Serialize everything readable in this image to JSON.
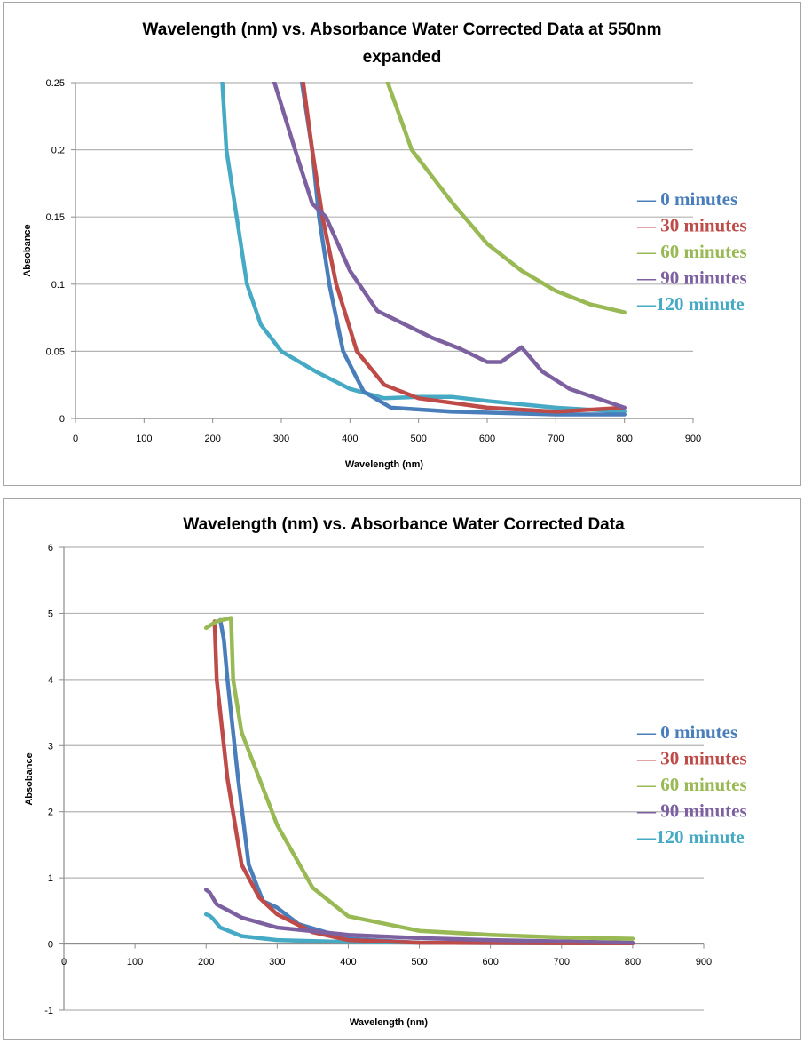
{
  "chart_data": [
    {
      "type": "line",
      "title": "Wavelength (nm) vs. Absorbance Water Corrected Data at 550nm expanded",
      "title_lines": [
        "Wavelength (nm) vs. Absorbance Water Corrected Data at 550nm",
        "expanded"
      ],
      "xlabel": "Wavelength (nm)",
      "ylabel": "Absobance",
      "xlim": [
        0,
        900
      ],
      "ylim": [
        0,
        0.25
      ],
      "xticks": [
        0,
        100,
        200,
        300,
        400,
        500,
        600,
        700,
        800,
        900
      ],
      "yticks": [
        0,
        0.05,
        0.1,
        0.15,
        0.2,
        0.25
      ],
      "ytick_labels": [
        "0",
        "0.05",
        "0.1",
        "0.15",
        "0.2",
        "0.25"
      ],
      "grid": true,
      "legend_position": "right",
      "series": [
        {
          "name": "0 minutes",
          "legend_label": "— 0 minutes",
          "color": "#4a7ebb",
          "x": [
            330,
            345,
            355,
            370,
            390,
            420,
            460,
            550,
            700,
            800
          ],
          "y": [
            0.25,
            0.2,
            0.15,
            0.1,
            0.05,
            0.02,
            0.008,
            0.005,
            0.003,
            0.003
          ]
        },
        {
          "name": "30 minutes",
          "legend_label": "— 30 minutes",
          "color": "#be4b48",
          "x": [
            332,
            345,
            360,
            380,
            410,
            450,
            500,
            600,
            700,
            800
          ],
          "y": [
            0.25,
            0.2,
            0.15,
            0.1,
            0.05,
            0.025,
            0.015,
            0.008,
            0.005,
            0.008
          ]
        },
        {
          "name": "60 minutes",
          "legend_label": "— 60 minutes",
          "color": "#98b954",
          "x": [
            455,
            490,
            550,
            600,
            650,
            700,
            750,
            800
          ],
          "y": [
            0.25,
            0.2,
            0.16,
            0.13,
            0.11,
            0.095,
            0.085,
            0.079
          ]
        },
        {
          "name": "90 minutes",
          "legend_label": "— 90 minutes",
          "color": "#7d60a0",
          "x": [
            290,
            320,
            345,
            365,
            400,
            440,
            480,
            520,
            560,
            600,
            620,
            650,
            680,
            720,
            760,
            800
          ],
          "y": [
            0.25,
            0.2,
            0.16,
            0.15,
            0.11,
            0.08,
            0.07,
            0.06,
            0.052,
            0.042,
            0.042,
            0.053,
            0.035,
            0.022,
            0.015,
            0.008
          ]
        },
        {
          "name": "120 minute",
          "legend_label": "—120 minute",
          "color": "#46aac5",
          "x": [
            214,
            220,
            235,
            250,
            270,
            300,
            350,
            400,
            450,
            500,
            550,
            600,
            700,
            800
          ],
          "y": [
            0.25,
            0.2,
            0.15,
            0.1,
            0.07,
            0.05,
            0.035,
            0.022,
            0.015,
            0.016,
            0.016,
            0.013,
            0.008,
            0.005
          ]
        }
      ]
    },
    {
      "type": "line",
      "title": "Wavelength (nm) vs. Absorbance Water Corrected Data",
      "title_lines": [
        "Wavelength (nm) vs. Absorbance Water Corrected Data"
      ],
      "xlabel": "Wavelength (nm)",
      "ylabel": "Absobance",
      "xlim": [
        0,
        900
      ],
      "ylim": [
        -1,
        6
      ],
      "xticks": [
        0,
        100,
        200,
        300,
        400,
        500,
        600,
        700,
        800,
        900
      ],
      "yticks": [
        -1,
        0,
        1,
        2,
        3,
        4,
        5,
        6
      ],
      "ytick_labels": [
        "-1",
        "0",
        "1",
        "2",
        "3",
        "4",
        "5",
        "6"
      ],
      "grid": true,
      "legend_position": "right",
      "series": [
        {
          "name": "0 minutes",
          "legend_label": "— 0 minutes",
          "color": "#4a7ebb",
          "x": [
            220,
            225,
            230,
            245,
            260,
            280,
            300,
            330,
            400,
            500,
            800
          ],
          "y": [
            4.9,
            4.6,
            4.0,
            2.5,
            1.2,
            0.65,
            0.55,
            0.3,
            0.08,
            0.02,
            0.01
          ]
        },
        {
          "name": "30 minutes",
          "legend_label": "— 30 minutes",
          "color": "#be4b48",
          "x": [
            212,
            215,
            230,
            250,
            275,
            300,
            350,
            400,
            500,
            800
          ],
          "y": [
            4.88,
            4.0,
            2.5,
            1.2,
            0.7,
            0.45,
            0.18,
            0.06,
            0.02,
            0.01
          ]
        },
        {
          "name": "60 minutes",
          "legend_label": "— 60 minutes",
          "color": "#98b954",
          "x": [
            200,
            215,
            235,
            238,
            250,
            275,
            300,
            350,
            400,
            500,
            600,
            700,
            800
          ],
          "y": [
            4.78,
            4.88,
            4.93,
            4.0,
            3.2,
            2.5,
            1.8,
            0.85,
            0.42,
            0.2,
            0.14,
            0.1,
            0.08
          ]
        },
        {
          "name": "90 minutes",
          "legend_label": "— 90 minutes",
          "color": "#7d60a0",
          "x": [
            200,
            205,
            215,
            250,
            300,
            400,
            500,
            600,
            700,
            800
          ],
          "y": [
            0.82,
            0.78,
            0.6,
            0.4,
            0.25,
            0.14,
            0.09,
            0.06,
            0.04,
            0.02
          ]
        },
        {
          "name": "120 minute",
          "legend_label": "—120 minute",
          "color": "#46aac5",
          "x": [
            200,
            205,
            210,
            220,
            250,
            300,
            400,
            500,
            800
          ],
          "y": [
            0.45,
            0.43,
            0.38,
            0.25,
            0.12,
            0.06,
            0.03,
            0.02,
            0.01
          ]
        }
      ]
    }
  ]
}
